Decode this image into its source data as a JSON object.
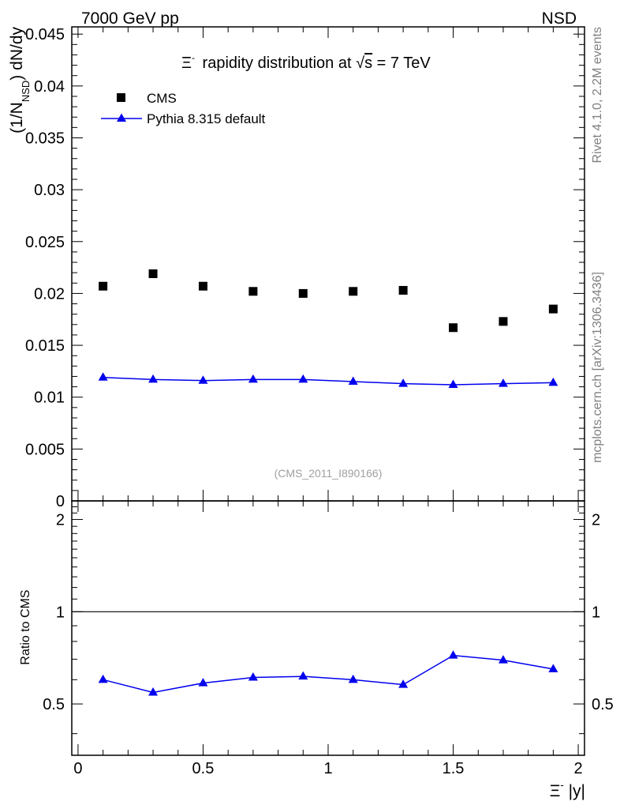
{
  "header": {
    "left": "7000 GeV pp",
    "right": "NSD",
    "side_top": "Rivet 4.1.0,  2.2M events",
    "side_bottom": "mcplots.cern.ch [arXiv:1306.3436]",
    "watermark": "(CMS_2011_I890166)"
  },
  "chart_data": [
    {
      "type": "scatter",
      "title_prefix": "Ξ",
      "title_sup": "-",
      "title_mid": " rapidity distribution at ",
      "title_sqrt": "√",
      "title_s": "s",
      "title_suffix": " = 7 TeV",
      "ylabel_parts": [
        "(1/N",
        "NSD",
        ") dN/dy"
      ],
      "ylim": [
        0,
        0.0457
      ],
      "xlim": [
        -0.025,
        2.025
      ],
      "yticks": [
        0,
        0.005,
        0.01,
        0.015,
        0.02,
        0.025,
        0.03,
        0.035,
        0.04,
        0.045
      ],
      "ytick_labels": [
        "0",
        "0.005",
        "0.01",
        "0.015",
        "0.02",
        "0.025",
        "0.03",
        "0.035",
        "0.04",
        "0.045"
      ],
      "series": [
        {
          "name": "CMS",
          "marker": "square",
          "color": "#000000",
          "x": [
            0.1,
            0.3,
            0.5,
            0.7,
            0.9,
            1.1,
            1.3,
            1.5,
            1.7,
            1.9
          ],
          "values": [
            0.0207,
            0.0219,
            0.0207,
            0.0202,
            0.02,
            0.0202,
            0.0203,
            0.0167,
            0.0173,
            0.0185
          ]
        },
        {
          "name": "Pythia 8.315 default",
          "marker": "triangle",
          "color": "#0000ee",
          "x": [
            0.1,
            0.3,
            0.5,
            0.7,
            0.9,
            1.1,
            1.3,
            1.5,
            1.7,
            1.9
          ],
          "values": [
            0.0119,
            0.0117,
            0.0116,
            0.0117,
            0.0117,
            0.0115,
            0.0113,
            0.0112,
            0.0113,
            0.0114
          ]
        }
      ]
    },
    {
      "type": "line",
      "ylabel": "Ratio to CMS",
      "ylim": [
        0.34,
        2.3
      ],
      "xlim": [
        -0.025,
        2.025
      ],
      "reference_line": 1,
      "yticks": [
        0.5,
        1,
        2
      ],
      "ytick_labels": [
        "0.5",
        "1",
        "2"
      ],
      "xticks": [
        0,
        0.5,
        1,
        1.5,
        2
      ],
      "xtick_labels": [
        "0",
        "0.5",
        "1",
        "1.5",
        "2"
      ],
      "xlabel_parts": [
        "Ξ",
        "-",
        " |y|"
      ],
      "series": [
        {
          "name": "Pythia 8.315 default / CMS",
          "color": "#0000ee",
          "x": [
            0.1,
            0.3,
            0.5,
            0.7,
            0.9,
            1.1,
            1.3,
            1.5,
            1.7,
            1.9
          ],
          "values": [
            0.6,
            0.545,
            0.585,
            0.61,
            0.615,
            0.6,
            0.578,
            0.72,
            0.695,
            0.65
          ]
        }
      ]
    }
  ]
}
